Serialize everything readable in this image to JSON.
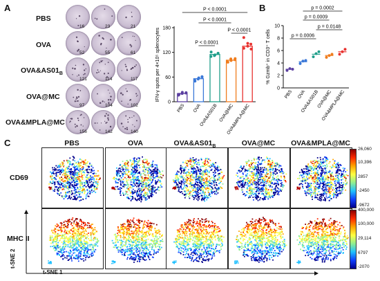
{
  "panelA": {
    "letter": "A",
    "rows": [
      {
        "label": "PBS",
        "counts": [
          "16",
          "23",
          "21"
        ]
      },
      {
        "label": "OVA",
        "counts": [
          "52",
          "55",
          "61"
        ]
      },
      {
        "label": "OVA&AS01",
        "sub": "B",
        "counts": [
          "121",
          "114",
          "117"
        ]
      },
      {
        "label": "OVA@MC",
        "counts": [
          "97",
          "104",
          "102"
        ]
      },
      {
        "label": "OVA&MPLA@MC",
        "counts": [
          "156",
          "142",
          "140"
        ]
      }
    ]
  },
  "panelB": {
    "letter": "B"
  },
  "panelC": {
    "letter": "C",
    "columns": [
      "PBS",
      "OVA",
      "OVA&AS01",
      "OVA@MC",
      "OVA&MPLA@MC"
    ],
    "col_sub": "B",
    "rows": [
      {
        "label": "CD69",
        "ticks": [
          "26,060",
          "10,396",
          "2857",
          "-2450",
          "-9672"
        ]
      },
      {
        "label": "MHC II",
        "ticks": [
          "400,000",
          "100,000",
          "29,114",
          "6797",
          "-2070"
        ]
      }
    ],
    "axis_x": "t-SNE 1",
    "axis_y": "t-SNE 2"
  },
  "chart_data": [
    {
      "type": "bar",
      "ylabel": "IFN-γ spots per 4×10⁵ splenocytes",
      "ylim": [
        0,
        180
      ],
      "yticks": [
        "0",
        "60",
        "120",
        "180"
      ],
      "categories": [
        "PBS",
        "OVA",
        "OVA&AS01B",
        "OVA@MC",
        "OVA&MPLA@MC"
      ],
      "values": [
        20,
        56,
        115,
        101,
        135
      ],
      "colors": [
        "#5b3fa0",
        "#3a78d8",
        "#1f9e8a",
        "#f07c1c",
        "#e8322f"
      ],
      "points": [
        [
          16,
          23,
          21,
          18,
          20,
          22
        ],
        [
          52,
          55,
          61,
          50,
          58,
          60
        ],
        [
          121,
          114,
          117,
          110,
          112,
          118
        ],
        [
          97,
          104,
          102,
          96,
          100,
          105
        ],
        [
          156,
          142,
          140,
          130,
          135,
          128
        ]
      ],
      "annotations": [
        "P < 0.0001",
        "P < 0.0001",
        "P < 0.0001",
        "P < 0.0001"
      ]
    },
    {
      "type": "scatter",
      "ylabel": "% Gzmb⁺ in CD3⁺ T cells",
      "ylim": [
        0,
        10
      ],
      "yticks": [
        "0",
        "2",
        "4",
        "6",
        "8",
        "10"
      ],
      "categories": [
        "PBS",
        "OVA",
        "OVA&AS01B",
        "OVA@MC",
        "OVA&MPLA@MC"
      ],
      "means": [
        3.0,
        4.2,
        5.4,
        5.2,
        5.8
      ],
      "colors": [
        "#5b3fa0",
        "#3a78d8",
        "#1f9e8a",
        "#f07c1c",
        "#e8322f"
      ],
      "points": [
        [
          2.8,
          3.1,
          3.0
        ],
        [
          3.9,
          4.3,
          4.4
        ],
        [
          5.0,
          5.5,
          5.8
        ],
        [
          4.9,
          5.2,
          5.4
        ],
        [
          5.4,
          5.8,
          6.2
        ]
      ],
      "annotations": [
        "p = 0.0002",
        "p = 0.0009",
        "p = 0.0148",
        "p = 0.0006"
      ]
    }
  ]
}
